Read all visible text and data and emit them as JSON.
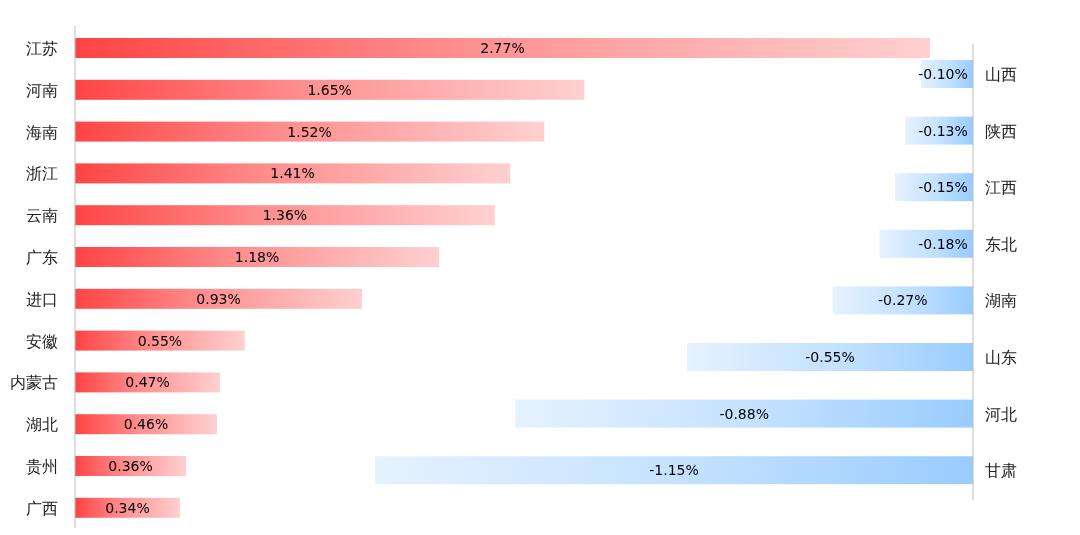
{
  "chart_data": [
    {
      "type": "bar",
      "orientation": "horizontal",
      "color": "#ff4444",
      "categories": [
        "江苏",
        "河南",
        "海南",
        "浙江",
        "云南",
        "广东",
        "进口",
        "安徽",
        "内蒙古",
        "湖北",
        "贵州",
        "广西"
      ],
      "values": [
        2.77,
        1.65,
        1.52,
        1.41,
        1.36,
        1.18,
        0.93,
        0.55,
        0.47,
        0.46,
        0.36,
        0.34
      ],
      "value_labels": [
        "2.77%",
        "1.65%",
        "1.52%",
        "1.41%",
        "1.36%",
        "1.18%",
        "0.93%",
        "0.55%",
        "0.47%",
        "0.46%",
        "0.36%",
        "0.34%"
      ]
    },
    {
      "type": "bar",
      "orientation": "horizontal",
      "color": "#99ccff",
      "categories": [
        "山西",
        "陕西",
        "江西",
        "东北",
        "湖南",
        "山东",
        "河北",
        "甘肃"
      ],
      "values": [
        -0.1,
        -0.13,
        -0.15,
        -0.18,
        -0.27,
        -0.55,
        -0.88,
        -1.15
      ],
      "value_labels": [
        "-0.10%",
        "-0.13%",
        "-0.15%",
        "-0.18%",
        "-0.27%",
        "-0.55%",
        "-0.88%",
        "-1.15%"
      ]
    }
  ]
}
